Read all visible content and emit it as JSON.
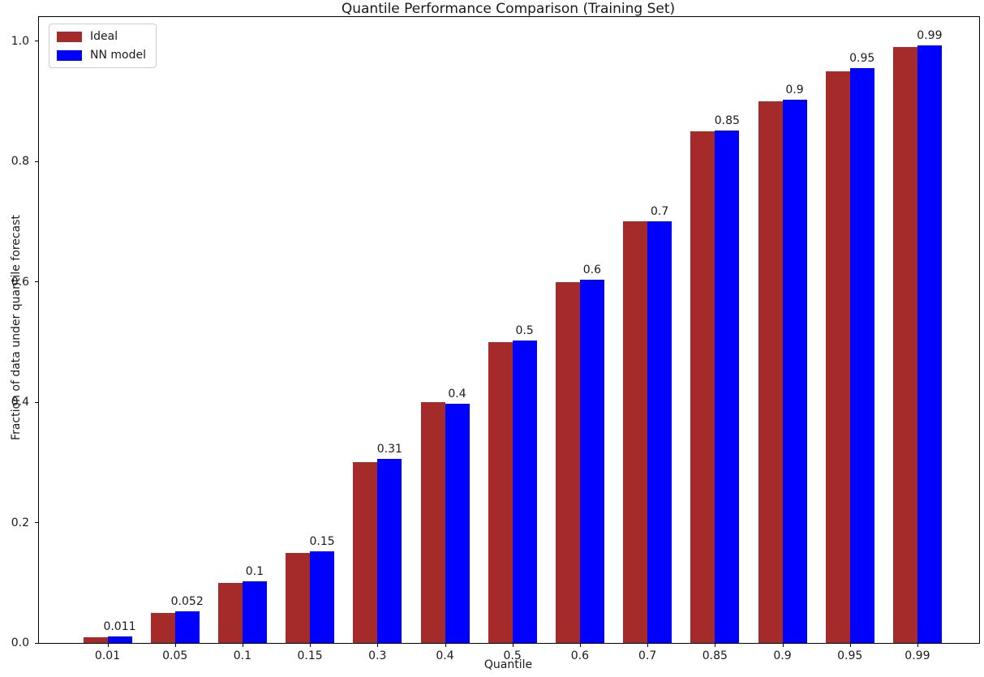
{
  "title": "Quantile Performance Comparison (Training Set)",
  "chart_data": {
    "type": "bar",
    "title": "Quantile Performance Comparison (Training Set)",
    "xlabel": "Quantile",
    "ylabel": "Fraction of data under quantile forecast",
    "categories": [
      "0.01",
      "0.05",
      "0.1",
      "0.15",
      "0.3",
      "0.4",
      "0.5",
      "0.6",
      "0.7",
      "0.85",
      "0.9",
      "0.95",
      "0.99"
    ],
    "series": [
      {
        "name": "Ideal",
        "color": "#a52a2a",
        "values": [
          0.01,
          0.05,
          0.1,
          0.15,
          0.3,
          0.4,
          0.5,
          0.6,
          0.7,
          0.85,
          0.9,
          0.95,
          0.99
        ]
      },
      {
        "name": "NN model",
        "color": "#0000ff",
        "values": [
          0.011,
          0.052,
          0.102,
          0.152,
          0.306,
          0.397,
          0.503,
          0.604,
          0.701,
          0.851,
          0.903,
          0.955,
          0.993
        ]
      }
    ],
    "bar_labels": [
      "0.011",
      "0.052",
      "0.1",
      "0.15",
      "0.31",
      "0.4",
      "0.5",
      "0.6",
      "0.7",
      "0.85",
      "0.9",
      "0.95",
      "0.99"
    ],
    "yticks": [
      0.0,
      0.2,
      0.4,
      0.6,
      0.8,
      1.0
    ],
    "ytick_labels": [
      "0.0",
      "0.2",
      "0.4",
      "0.6",
      "0.8",
      "1.0"
    ],
    "ylim": [
      0,
      1.04
    ],
    "legend_position": "upper-left",
    "grid": false,
    "spine_color": "#000000",
    "text_color": "#1a1a1a"
  }
}
